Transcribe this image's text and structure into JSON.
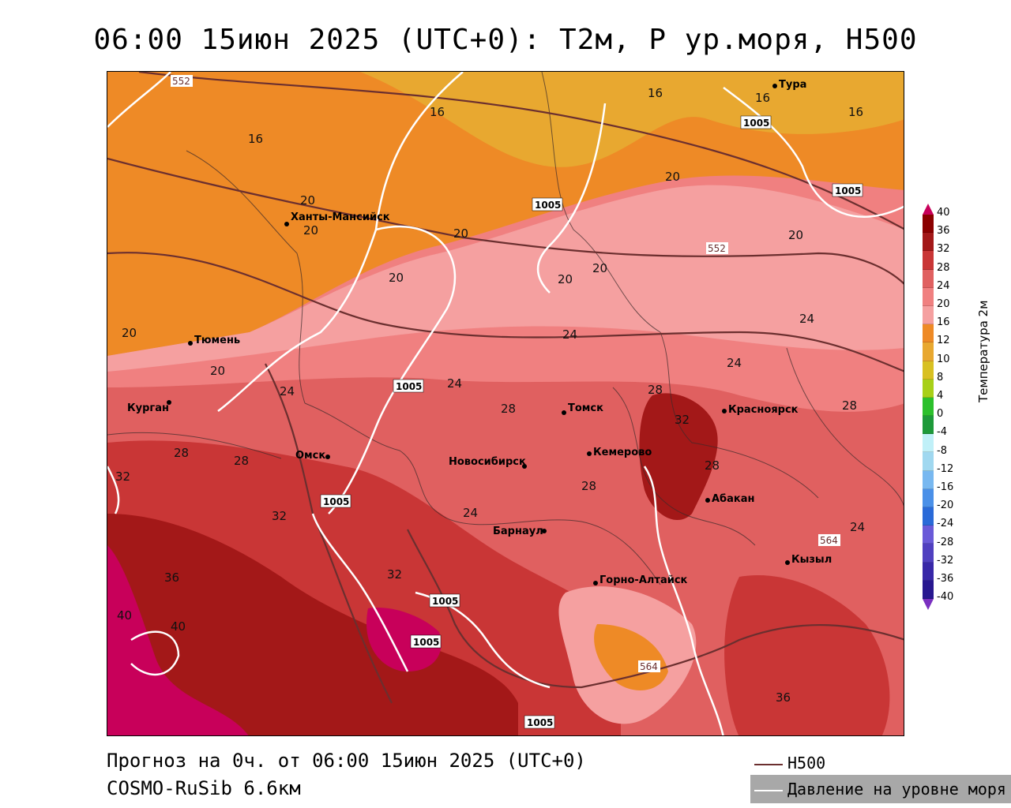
{
  "title": "06:00 15июн 2025 (UTC+0): T2м, P ур.моря, H500",
  "footer": {
    "line1": "Прогноз на 0ч. от 06:00 15июн 2025 (UTC+0)",
    "line2": "COSMO-RuSib 6.6км"
  },
  "legend": {
    "h500_label": "H500",
    "h500_color": "#6b2f2f",
    "slp_label": "Давление на уровне моря",
    "slp_color": "#ffffff"
  },
  "colorbar": {
    "label": "Температура 2м",
    "ticks": [
      "40",
      "36",
      "32",
      "28",
      "24",
      "20",
      "16",
      "12",
      "10",
      "8",
      "4",
      "0",
      "-4",
      "-8",
      "-12",
      "-16",
      "-20",
      "-24",
      "-28",
      "-32",
      "-36",
      "-40"
    ],
    "colors": [
      "#c8005a",
      "#8b0000",
      "#a31818",
      "#c93636",
      "#e06060",
      "#f08080",
      "#f5a0a0",
      "#ee8a26",
      "#e8a830",
      "#d8c022",
      "#a8d018",
      "#2cc02c",
      "#1e9a3a",
      "#c0f0f8",
      "#a0d8f0",
      "#78b8f0",
      "#4a90e8",
      "#2a6ad8",
      "#6a5ad8",
      "#5040c0",
      "#3828a8",
      "#281890",
      "#7a30c0"
    ]
  },
  "cities": [
    {
      "name": "Тура"
    },
    {
      "name": "Ханты-Мансийск"
    },
    {
      "name": "Тюмень"
    },
    {
      "name": "Курган"
    },
    {
      "name": "Омск"
    },
    {
      "name": "Новосибирск"
    },
    {
      "name": "Томск"
    },
    {
      "name": "Кемерово"
    },
    {
      "name": "Красноярск"
    },
    {
      "name": "Абакан"
    },
    {
      "name": "Барнаул"
    },
    {
      "name": "Горно-Алтайск"
    },
    {
      "name": "Кызыл"
    }
  ],
  "h500_labels": [
    "552",
    "552",
    "564",
    "564"
  ],
  "slp_labels": [
    "1005",
    "1005",
    "1005",
    "1005",
    "1005",
    "1005",
    "1005",
    "1005"
  ],
  "temp_labels": [
    "16",
    "16",
    "16",
    "16",
    "16",
    "20",
    "20",
    "20",
    "20",
    "20",
    "20",
    "20",
    "20",
    "20",
    "20",
    "24",
    "24",
    "24",
    "24",
    "24",
    "24",
    "24",
    "28",
    "28",
    "28",
    "28",
    "28",
    "28",
    "28",
    "32",
    "32",
    "32",
    "32",
    "36",
    "36",
    "40",
    "40"
  ]
}
